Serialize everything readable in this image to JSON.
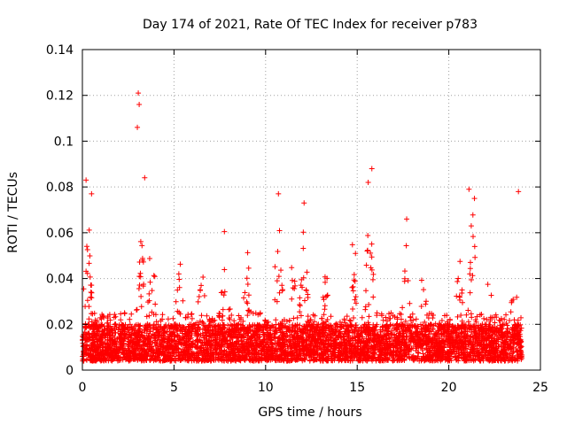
{
  "chart_data": {
    "type": "scatter",
    "title": "Day 174 of 2021, Rate Of TEC Index for receiver p783",
    "xlabel": "GPS time / hours",
    "ylabel": "ROTI / TECUs",
    "xlim": [
      0,
      25
    ],
    "ylim": [
      0,
      0.14
    ],
    "x_ticks": [
      "0",
      "5",
      "10",
      "15",
      "20",
      "25"
    ],
    "y_ticks": [
      "0",
      "0.02",
      "0.04",
      "0.06",
      "0.08",
      "0.1",
      "0.12",
      "0.14"
    ],
    "grid": true,
    "marker": "+",
    "color": "#ff0000",
    "x_range_data": [
      0,
      24
    ],
    "baseline_range": [
      0.004,
      0.02
    ],
    "notable_points": [
      {
        "x": 0.2,
        "y": 0.083
      },
      {
        "x": 0.5,
        "y": 0.077
      },
      {
        "x": 3.05,
        "y": 0.121
      },
      {
        "x": 3.1,
        "y": 0.116
      },
      {
        "x": 3.0,
        "y": 0.106
      },
      {
        "x": 3.4,
        "y": 0.084
      },
      {
        "x": 10.7,
        "y": 0.077
      },
      {
        "x": 12.1,
        "y": 0.073
      },
      {
        "x": 15.6,
        "y": 0.082
      },
      {
        "x": 15.8,
        "y": 0.088
      },
      {
        "x": 17.7,
        "y": 0.066
      },
      {
        "x": 21.1,
        "y": 0.079
      },
      {
        "x": 21.4,
        "y": 0.075
      },
      {
        "x": 23.8,
        "y": 0.078
      }
    ]
  }
}
